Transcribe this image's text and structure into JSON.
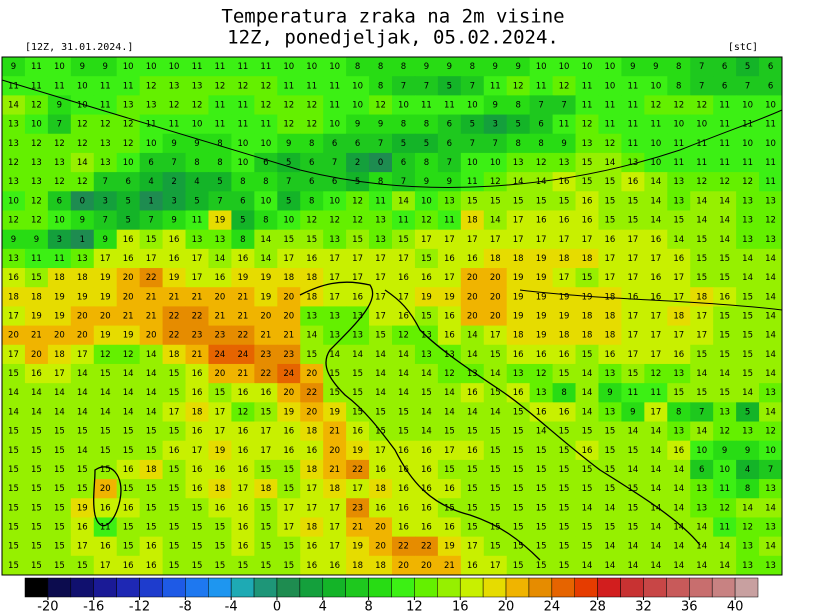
{
  "header": {
    "title_lines": [
      "Temperatura zraka na 2m visine",
      "12Z, ponedjeljak, 05.02.2024."
    ],
    "run_label": "[12Z, 31.01.2024.]",
    "unit_label": "[stC]"
  },
  "grid": {
    "rows": [
      [
        9,
        11,
        10,
        9,
        9,
        10,
        10,
        10,
        11,
        11,
        11,
        11,
        10,
        10,
        10,
        8,
        8,
        8,
        9,
        9,
        8,
        9,
        9,
        10,
        10,
        10,
        10,
        9,
        9,
        8,
        7,
        6,
        5,
        6
      ],
      [
        11,
        11,
        11,
        10,
        11,
        11,
        12,
        13,
        13,
        12,
        12,
        12,
        11,
        11,
        11,
        10,
        8,
        7,
        7,
        5,
        7,
        11,
        12,
        11,
        12,
        11,
        10,
        11,
        10,
        8,
        7,
        6,
        7,
        6
      ],
      [
        14,
        12,
        9,
        10,
        11,
        13,
        13,
        12,
        12,
        11,
        11,
        12,
        12,
        12,
        11,
        10,
        12,
        10,
        11,
        11,
        10,
        9,
        8,
        7,
        7,
        11,
        11,
        11,
        12,
        12,
        12,
        11,
        10,
        10
      ],
      [
        13,
        10,
        7,
        12,
        12,
        12,
        11,
        11,
        10,
        11,
        11,
        11,
        12,
        12,
        10,
        9,
        9,
        8,
        8,
        6,
        5,
        3,
        5,
        6,
        11,
        12,
        11,
        11,
        11,
        10,
        10,
        11,
        11,
        11
      ],
      [
        13,
        12,
        12,
        12,
        13,
        12,
        10,
        9,
        9,
        8,
        10,
        10,
        9,
        8,
        6,
        6,
        7,
        5,
        5,
        6,
        7,
        7,
        8,
        8,
        9,
        13,
        12,
        11,
        10,
        11,
        11,
        11,
        10,
        10
      ],
      [
        12,
        13,
        13,
        14,
        13,
        10,
        6,
        7,
        8,
        8,
        10,
        6,
        5,
        6,
        7,
        2,
        0,
        6,
        8,
        7,
        10,
        10,
        13,
        12,
        13,
        15,
        14,
        13,
        10,
        11,
        11,
        11,
        11,
        11
      ],
      [
        13,
        13,
        12,
        12,
        7,
        6,
        4,
        2,
        4,
        5,
        8,
        8,
        7,
        6,
        6,
        5,
        8,
        7,
        9,
        9,
        11,
        12,
        14,
        14,
        16,
        15,
        15,
        16,
        14,
        13,
        12,
        12,
        12,
        11
      ],
      [
        10,
        12,
        6,
        0,
        3,
        5,
        1,
        3,
        5,
        7,
        6,
        10,
        5,
        8,
        10,
        12,
        11,
        14,
        10,
        13,
        15,
        15,
        15,
        15,
        15,
        16,
        15,
        15,
        14,
        13,
        14,
        14,
        13,
        13
      ],
      [
        12,
        12,
        10,
        9,
        7,
        5,
        7,
        9,
        11,
        19,
        5,
        8,
        10,
        12,
        12,
        12,
        13,
        11,
        12,
        11,
        18,
        14,
        17,
        16,
        16,
        16,
        15,
        15,
        14,
        15,
        14,
        14,
        13,
        12
      ],
      [
        9,
        9,
        3,
        1,
        9,
        16,
        15,
        16,
        13,
        13,
        8,
        14,
        15,
        15,
        13,
        15,
        13,
        15,
        17,
        17,
        17,
        17,
        17,
        17,
        17,
        17,
        16,
        17,
        16,
        14,
        15,
        14,
        13,
        13
      ],
      [
        13,
        11,
        11,
        13,
        17,
        16,
        17,
        16,
        17,
        14,
        16,
        14,
        17,
        16,
        17,
        17,
        17,
        17,
        15,
        16,
        16,
        18,
        18,
        19,
        18,
        18,
        17,
        17,
        17,
        16,
        15,
        15,
        14,
        14
      ],
      [
        16,
        15,
        18,
        18,
        19,
        20,
        22,
        19,
        17,
        16,
        19,
        19,
        18,
        18,
        17,
        17,
        17,
        16,
        16,
        17,
        20,
        20,
        19,
        19,
        17,
        15,
        17,
        17,
        16,
        17,
        15,
        15,
        14,
        14
      ],
      [
        18,
        18,
        19,
        19,
        19,
        20,
        21,
        21,
        21,
        20,
        21,
        19,
        20,
        18,
        17,
        16,
        17,
        17,
        19,
        19,
        20,
        20,
        19,
        19,
        19,
        19,
        18,
        16,
        16,
        17,
        18,
        16,
        15,
        14
      ],
      [
        17,
        19,
        19,
        20,
        20,
        21,
        21,
        22,
        22,
        21,
        21,
        20,
        20,
        13,
        13,
        13,
        17,
        16,
        15,
        16,
        20,
        20,
        19,
        19,
        19,
        18,
        18,
        17,
        17,
        18,
        17,
        15,
        15,
        14
      ],
      [
        20,
        21,
        20,
        20,
        19,
        19,
        20,
        22,
        23,
        23,
        22,
        21,
        21,
        14,
        13,
        13,
        15,
        12,
        13,
        16,
        14,
        17,
        18,
        19,
        18,
        18,
        18,
        17,
        17,
        17,
        17,
        15,
        15,
        14
      ],
      [
        17,
        20,
        18,
        17,
        12,
        12,
        14,
        18,
        21,
        24,
        24,
        23,
        23,
        15,
        14,
        14,
        14,
        14,
        13,
        13,
        14,
        15,
        16,
        16,
        16,
        15,
        16,
        17,
        17,
        16,
        15,
        15,
        15,
        14
      ],
      [
        15,
        16,
        17,
        14,
        15,
        14,
        14,
        15,
        16,
        20,
        21,
        22,
        24,
        20,
        15,
        15,
        14,
        14,
        14,
        12,
        13,
        14,
        13,
        12,
        15,
        14,
        13,
        15,
        12,
        13,
        14,
        14,
        15,
        14
      ],
      [
        14,
        14,
        14,
        14,
        14,
        14,
        14,
        15,
        16,
        15,
        16,
        16,
        20,
        22,
        15,
        15,
        14,
        14,
        15,
        14,
        16,
        15,
        16,
        13,
        8,
        14,
        9,
        11,
        11,
        15,
        15,
        15,
        14,
        13
      ],
      [
        14,
        14,
        14,
        14,
        14,
        14,
        14,
        17,
        18,
        17,
        12,
        15,
        19,
        20,
        19,
        15,
        15,
        15,
        14,
        14,
        14,
        14,
        15,
        16,
        16,
        14,
        13,
        9,
        17,
        8,
        7,
        13,
        5,
        14
      ],
      [
        15,
        15,
        15,
        15,
        15,
        15,
        15,
        15,
        16,
        17,
        16,
        17,
        16,
        18,
        21,
        16,
        15,
        15,
        14,
        15,
        15,
        15,
        15,
        14,
        15,
        15,
        15,
        14,
        14,
        13,
        14,
        12,
        13,
        12
      ],
      [
        15,
        15,
        15,
        14,
        15,
        15,
        15,
        16,
        17,
        19,
        16,
        17,
        16,
        16,
        20,
        19,
        17,
        16,
        16,
        17,
        16,
        15,
        15,
        15,
        15,
        16,
        15,
        15,
        14,
        16,
        10,
        9,
        9,
        10
      ],
      [
        15,
        15,
        15,
        15,
        15,
        16,
        18,
        15,
        16,
        16,
        16,
        15,
        15,
        18,
        21,
        22,
        16,
        16,
        16,
        15,
        15,
        15,
        15,
        15,
        15,
        15,
        15,
        14,
        14,
        14,
        6,
        10,
        4,
        7
      ],
      [
        15,
        15,
        15,
        15,
        20,
        15,
        15,
        15,
        16,
        18,
        17,
        18,
        15,
        17,
        18,
        17,
        18,
        16,
        16,
        16,
        15,
        15,
        15,
        15,
        15,
        15,
        15,
        15,
        14,
        14,
        13,
        11,
        8,
        13
      ],
      [
        15,
        15,
        15,
        19,
        16,
        16,
        15,
        15,
        15,
        16,
        16,
        15,
        17,
        17,
        17,
        23,
        16,
        16,
        16,
        15,
        15,
        15,
        15,
        15,
        15,
        14,
        14,
        15,
        14,
        14,
        13,
        12,
        14,
        14
      ],
      [
        15,
        15,
        15,
        16,
        11,
        15,
        15,
        15,
        15,
        15,
        16,
        15,
        17,
        18,
        17,
        21,
        20,
        16,
        16,
        16,
        15,
        15,
        15,
        15,
        15,
        15,
        15,
        15,
        14,
        14,
        14,
        11,
        12,
        13
      ],
      [
        15,
        15,
        15,
        17,
        16,
        15,
        16,
        15,
        15,
        15,
        16,
        15,
        15,
        16,
        17,
        19,
        20,
        22,
        22,
        19,
        17,
        15,
        15,
        15,
        15,
        15,
        14,
        14,
        14,
        14,
        14,
        14,
        13,
        14
      ],
      [
        15,
        15,
        15,
        15,
        17,
        16,
        16,
        15,
        15,
        15,
        15,
        15,
        15,
        16,
        16,
        18,
        18,
        20,
        20,
        21,
        16,
        17,
        15,
        15,
        15,
        14,
        14,
        14,
        14,
        14,
        14,
        14,
        13,
        13
      ]
    ]
  },
  "colorbar": {
    "lim": [
      -22,
      42
    ],
    "ticks": [
      -20,
      -16,
      -12,
      -8,
      -4,
      0,
      4,
      8,
      12,
      16,
      20,
      24,
      28,
      32,
      36,
      40
    ],
    "colors": [
      "#000000",
      "#0c0c4e",
      "#10106e",
      "#1a1a96",
      "#1e28b4",
      "#1e3ccd",
      "#1e5ae6",
      "#1e78f0",
      "#1e96f0",
      "#1eaab4",
      "#1e9678",
      "#1e8c50",
      "#14a03c",
      "#14b428",
      "#1ec81e",
      "#28dc14",
      "#3cf014",
      "#64f000",
      "#96f000",
      "#c8f000",
      "#e6dc00",
      "#f0b400",
      "#e68c00",
      "#e66400",
      "#e63c00",
      "#d21e1e",
      "#c83232",
      "#c84646",
      "#c85a5a",
      "#c86e6e",
      "#c88282",
      "#c8a0a0"
    ]
  }
}
